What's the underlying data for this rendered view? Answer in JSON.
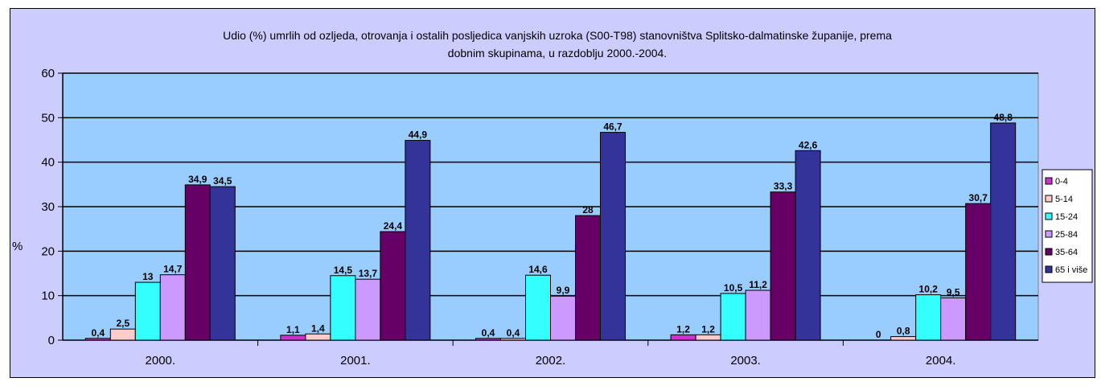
{
  "chart_data": {
    "type": "bar",
    "title_line1": "Udio (%) umrlih od ozljeda, otrovanja i ostalih posljedica vanjskih uzroka (S00-T98) stanovništva Splitsko-dalmatinske županije, prema",
    "title_line2": "dobnim skupinama, u razdoblju 2000.-2004.",
    "ylabel": "%",
    "xlabel": "",
    "ylim": [
      0,
      60
    ],
    "yticks": [
      0,
      10,
      20,
      30,
      40,
      50,
      60
    ],
    "categories": [
      "2000.",
      "2001.",
      "2002.",
      "2003.",
      "2004."
    ],
    "grid": true,
    "legend_position": "right",
    "series": [
      {
        "name": "0-4",
        "color": "#cc33cc",
        "values": [
          0.4,
          1.1,
          0.4,
          1.2,
          0
        ],
        "labels": [
          "0,4",
          "1,1",
          "0,4",
          "1,2",
          "0"
        ]
      },
      {
        "name": "5-14",
        "color": "#ffcccc",
        "values": [
          2.5,
          1.4,
          0.4,
          1.2,
          0.8
        ],
        "labels": [
          "2,5",
          "1,4",
          "0,4",
          "1,2",
          "0,8"
        ]
      },
      {
        "name": "15-24",
        "color": "#33ffff",
        "values": [
          13,
          14.5,
          14.6,
          10.5,
          10.2
        ],
        "labels": [
          "13",
          "14,5",
          "14,6",
          "10,5",
          "10,2"
        ]
      },
      {
        "name": "25-84",
        "color": "#cc99ff",
        "values": [
          14.7,
          13.7,
          9.9,
          11.2,
          9.5
        ],
        "labels": [
          "14,7",
          "13,7",
          "9,9",
          "11,2",
          "9,5"
        ]
      },
      {
        "name": "35-64",
        "color": "#660066",
        "values": [
          34.9,
          24.4,
          28,
          33.3,
          30.7
        ],
        "labels": [
          "34,9",
          "24,4",
          "28",
          "33,3",
          "30,7"
        ]
      },
      {
        "name": "65 i više",
        "color": "#333399",
        "values": [
          34.5,
          44.9,
          46.7,
          42.6,
          48.8
        ],
        "labels": [
          "34,5",
          "44,9",
          "46,7",
          "42,6",
          "48,8"
        ]
      }
    ],
    "plot_bg": "#99ccff",
    "chart_bg": "#ccccff"
  }
}
